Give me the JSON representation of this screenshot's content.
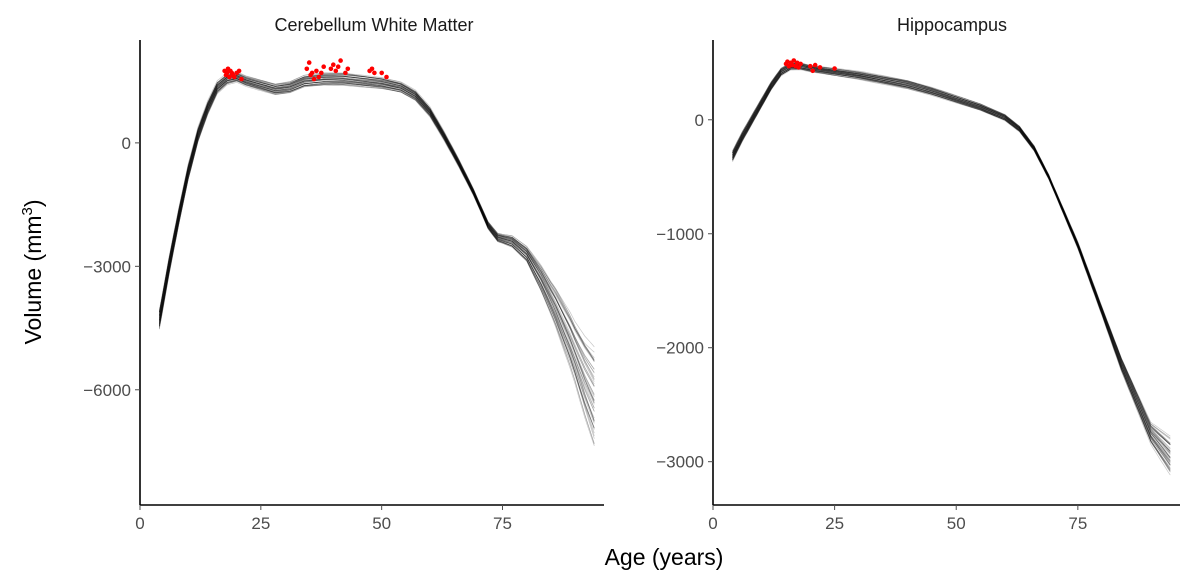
{
  "xlabel": "Age (years)",
  "ylabel": "Volume (mm",
  "ylabel_sup": "3",
  "ylabel_close": ")",
  "colors": {
    "curves": "#000000",
    "points": "#ff0000",
    "axis": "#000000",
    "ticks": "#4d4d4d"
  },
  "chart_data": [
    {
      "type": "line",
      "title": "Cerebellum White Matter",
      "xlim": [
        0,
        96
      ],
      "ylim": [
        -8800,
        2500
      ],
      "x_ticks": [
        0,
        25,
        50,
        75
      ],
      "y_ticks": [
        0,
        -3000,
        -6000
      ],
      "x_tick_labels": [
        "0",
        "25",
        "50",
        "75"
      ],
      "y_tick_labels": [
        "0",
        "−3000",
        "−6000"
      ],
      "n_curves": 50,
      "curve_center": [
        [
          4,
          -4300
        ],
        [
          6,
          -3000
        ],
        [
          8,
          -1800
        ],
        [
          10,
          -700
        ],
        [
          12,
          200
        ],
        [
          14,
          850
        ],
        [
          16,
          1350
        ],
        [
          18,
          1550
        ],
        [
          20,
          1600
        ],
        [
          22,
          1500
        ],
        [
          25,
          1400
        ],
        [
          28,
          1300
        ],
        [
          31,
          1350
        ],
        [
          34,
          1500
        ],
        [
          38,
          1550
        ],
        [
          42,
          1550
        ],
        [
          46,
          1500
        ],
        [
          50,
          1450
        ],
        [
          54,
          1350
        ],
        [
          57,
          1150
        ],
        [
          60,
          750
        ],
        [
          63,
          150
        ],
        [
          66,
          -500
        ],
        [
          69,
          -1200
        ],
        [
          72,
          -2000
        ],
        [
          74,
          -2300
        ],
        [
          77,
          -2400
        ],
        [
          80,
          -2700
        ],
        [
          83,
          -3300
        ],
        [
          86,
          -4000
        ],
        [
          89,
          -4800
        ],
        [
          92,
          -5700
        ],
        [
          94,
          -6200
        ]
      ],
      "curve_spread": [
        [
          4,
          250
        ],
        [
          20,
          120
        ],
        [
          40,
          170
        ],
        [
          60,
          120
        ],
        [
          70,
          80
        ],
        [
          75,
          120
        ],
        [
          80,
          200
        ],
        [
          85,
          450
        ],
        [
          90,
          800
        ],
        [
          94,
          1300
        ]
      ],
      "points": [
        [
          17.5,
          1750
        ],
        [
          17.8,
          1650
        ],
        [
          18,
          1700
        ],
        [
          18.2,
          1800
        ],
        [
          18.5,
          1600
        ],
        [
          18.7,
          1750
        ],
        [
          19,
          1700
        ],
        [
          19.2,
          1650
        ],
        [
          19.5,
          1600
        ],
        [
          20,
          1700
        ],
        [
          20.5,
          1750
        ],
        [
          21,
          1550
        ],
        [
          34.5,
          1800
        ],
        [
          35,
          1950
        ],
        [
          35.3,
          1650
        ],
        [
          35.6,
          1700
        ],
        [
          36,
          1550
        ],
        [
          36.5,
          1750
        ],
        [
          37,
          1600
        ],
        [
          37.5,
          1700
        ],
        [
          38,
          1850
        ],
        [
          39.5,
          1800
        ],
        [
          40,
          1900
        ],
        [
          40.5,
          1750
        ],
        [
          41,
          1850
        ],
        [
          41.5,
          2000
        ],
        [
          42.5,
          1700
        ],
        [
          43,
          1800
        ],
        [
          47.5,
          1750
        ],
        [
          48,
          1800
        ],
        [
          48.5,
          1700
        ],
        [
          50,
          1700
        ],
        [
          51,
          1600
        ]
      ]
    },
    {
      "type": "line",
      "title": "Hippocampus",
      "xlim": [
        0,
        96
      ],
      "ylim": [
        -3380,
        700
      ],
      "x_ticks": [
        0,
        25,
        50,
        75
      ],
      "y_ticks": [
        0,
        -1000,
        -2000,
        -3000
      ],
      "x_tick_labels": [
        "0",
        "25",
        "50",
        "75"
      ],
      "y_tick_labels": [
        "0",
        "−1000",
        "−2000",
        "−3000"
      ],
      "n_curves": 50,
      "curve_center": [
        [
          4,
          -320
        ],
        [
          6,
          -150
        ],
        [
          8,
          0
        ],
        [
          10,
          150
        ],
        [
          12,
          300
        ],
        [
          14,
          420
        ],
        [
          16,
          470
        ],
        [
          18,
          470
        ],
        [
          20,
          450
        ],
        [
          25,
          420
        ],
        [
          30,
          390
        ],
        [
          35,
          350
        ],
        [
          40,
          310
        ],
        [
          45,
          250
        ],
        [
          50,
          180
        ],
        [
          55,
          110
        ],
        [
          60,
          20
        ],
        [
          63,
          -80
        ],
        [
          66,
          -250
        ],
        [
          69,
          -500
        ],
        [
          72,
          -800
        ],
        [
          75,
          -1100
        ],
        [
          78,
          -1450
        ],
        [
          81,
          -1800
        ],
        [
          84,
          -2150
        ],
        [
          87,
          -2450
        ],
        [
          90,
          -2750
        ],
        [
          93,
          -2900
        ],
        [
          94,
          -2950
        ]
      ],
      "curve_spread": [
        [
          4,
          50
        ],
        [
          20,
          30
        ],
        [
          40,
          40
        ],
        [
          60,
          30
        ],
        [
          70,
          20
        ],
        [
          80,
          40
        ],
        [
          90,
          100
        ],
        [
          94,
          180
        ]
      ],
      "points": [
        [
          15,
          490
        ],
        [
          15.3,
          510
        ],
        [
          15.6,
          470
        ],
        [
          16,
          500
        ],
        [
          16.3,
          480
        ],
        [
          16.6,
          520
        ],
        [
          17,
          470
        ],
        [
          17.3,
          500
        ],
        [
          17.6,
          460
        ],
        [
          18,
          490
        ],
        [
          20,
          470
        ],
        [
          20.5,
          430
        ],
        [
          21,
          480
        ],
        [
          22,
          460
        ],
        [
          25,
          450
        ]
      ]
    }
  ]
}
